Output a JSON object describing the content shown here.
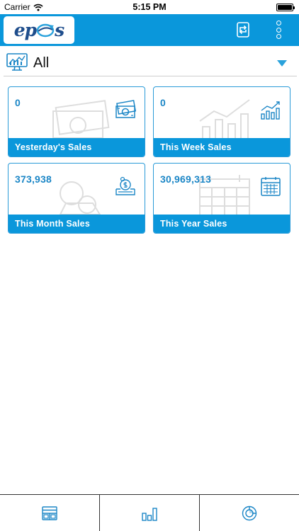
{
  "status_bar": {
    "carrier": "Carrier",
    "time": "5:15 PM"
  },
  "nav": {
    "logo_text": "ep",
    "logo_text_end": "s",
    "sync_icon": "sync-icon",
    "more_icon": "more-vertical-icon"
  },
  "selector": {
    "icon": "monitor-chart-icon",
    "label": "All",
    "arrow_icon": "dropdown-arrow-icon"
  },
  "cards": [
    {
      "value": "0",
      "title": "Yesterday's Sales",
      "icon": "cash-icon"
    },
    {
      "value": "0",
      "title": "This Week Sales",
      "icon": "bar-chart-trend-icon"
    },
    {
      "value": "373,938",
      "title": "This Month Sales",
      "icon": "money-bag-icon"
    },
    {
      "value": "30,969,313",
      "title": "This Year Sales",
      "icon": "calendar-icon"
    }
  ],
  "tabs": [
    {
      "icon": "dashboard-icon"
    },
    {
      "icon": "bar-chart-icon"
    },
    {
      "icon": "pie-chart-icon"
    }
  ],
  "colors": {
    "primary": "#0a97db",
    "value_text": "#1b86c6",
    "border": "#2a9bd8"
  }
}
